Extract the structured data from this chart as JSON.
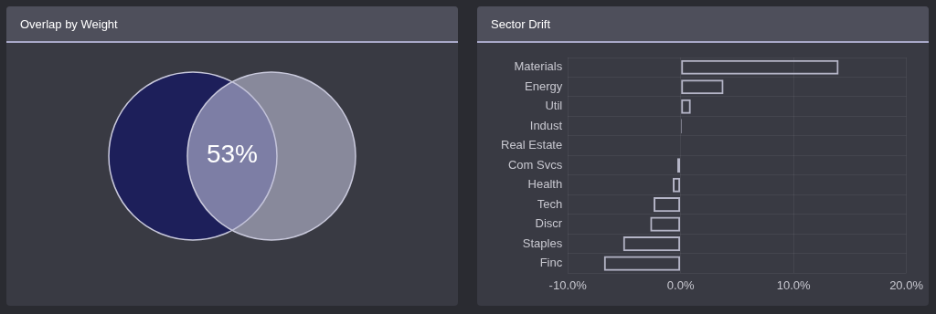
{
  "chart_data": [
    {
      "type": "other",
      "title": "Overlap by Weight",
      "annotations": [
        "53%"
      ]
    },
    {
      "type": "bar",
      "title": "Sector Drift",
      "orientation": "horizontal",
      "categories": [
        "Materials",
        "Energy",
        "Util",
        "Indust",
        "Real Estate",
        "Com Svcs",
        "Health",
        "Tech",
        "Discr",
        "Staples",
        "Finc"
      ],
      "values": [
        14.0,
        3.8,
        0.9,
        0.1,
        0.0,
        -0.3,
        -0.7,
        -2.4,
        -2.7,
        -5.1,
        -6.8
      ],
      "color": "#b4b4c6",
      "xlim": [
        -10,
        20
      ],
      "xticks": [
        {
          "value": -10,
          "label": "-10.0%"
        },
        {
          "value": 0,
          "label": "0.0%"
        },
        {
          "value": 10,
          "label": "10.0%"
        },
        {
          "value": 20,
          "label": "20.0%"
        }
      ],
      "grid": true,
      "legend": false
    }
  ]
}
